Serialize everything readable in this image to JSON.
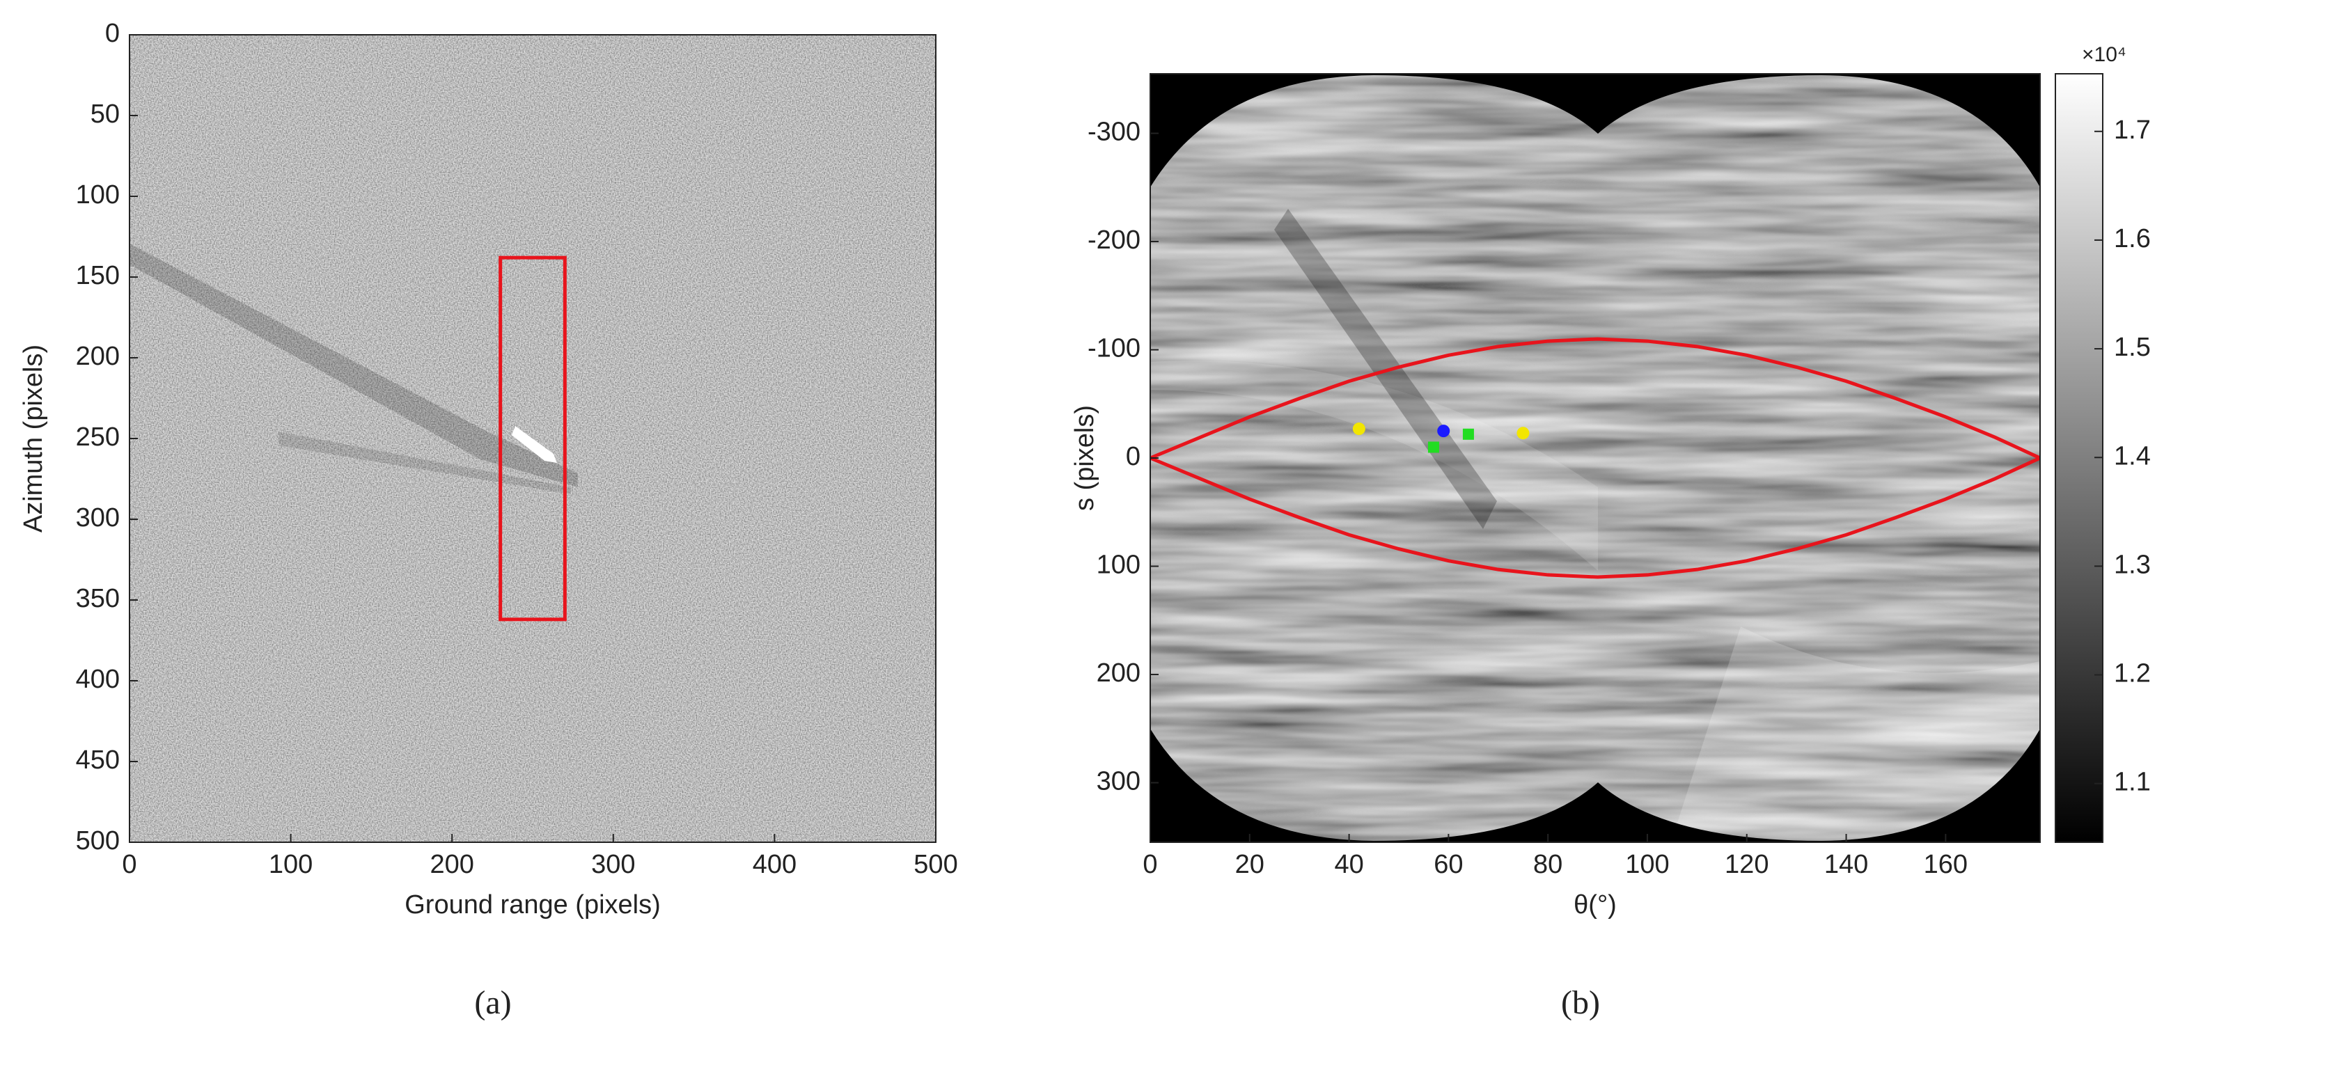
{
  "chart_data": [
    {
      "type": "image",
      "xlabel": "Ground range (pixels)",
      "ylabel": "Azimuth (pixels)",
      "caption": "(a)",
      "xlim": [
        0,
        500
      ],
      "ylim": [
        0,
        500
      ],
      "y_reversed": true,
      "xticks": [
        0,
        100,
        200,
        300,
        400,
        500
      ],
      "yticks": [
        0,
        50,
        100,
        150,
        200,
        250,
        300,
        350,
        400,
        450,
        500
      ],
      "rects": [
        {
          "x": [
            230,
            270
          ],
          "y": [
            138,
            362
          ],
          "color": "#e8141c"
        }
      ]
    },
    {
      "type": "image",
      "xlabel": "θ(°)",
      "ylabel": "s (pixels)",
      "caption": "(b)",
      "xlim": [
        0,
        179
      ],
      "ylim": [
        -355,
        355
      ],
      "y_reversed": true,
      "xticks": [
        0,
        20,
        40,
        60,
        80,
        100,
        120,
        140,
        160
      ],
      "yticks": [
        -300,
        -200,
        -100,
        0,
        100,
        200,
        300
      ],
      "series": [
        {
          "color": "#e8141c",
          "x": [
            0,
            10,
            20,
            30,
            40,
            50,
            60,
            70,
            80,
            90,
            100,
            110,
            120,
            130,
            140,
            150,
            160,
            170,
            179
          ],
          "values": [
            0,
            -19,
            -38,
            -55,
            -71,
            -84,
            -95,
            -103,
            -108,
            -110,
            -108,
            -103,
            -95,
            -84,
            -71,
            -55,
            -38,
            -19,
            0
          ]
        },
        {
          "color": "#e8141c",
          "x": [
            0,
            10,
            20,
            30,
            40,
            50,
            60,
            70,
            80,
            90,
            100,
            110,
            120,
            130,
            140,
            150,
            160,
            170,
            179
          ],
          "values": [
            0,
            19,
            38,
            55,
            71,
            84,
            95,
            103,
            108,
            110,
            108,
            103,
            95,
            84,
            71,
            55,
            38,
            19,
            0
          ]
        }
      ],
      "points": [
        {
          "x": 42,
          "y": -27,
          "color": "#f2e600",
          "marker": "circle"
        },
        {
          "x": 75,
          "y": -23,
          "color": "#f2e600",
          "marker": "circle"
        },
        {
          "x": 59,
          "y": -25,
          "color": "#1a1aff",
          "marker": "circle"
        },
        {
          "x": 57,
          "y": -10,
          "color": "#22dd22",
          "marker": "square"
        },
        {
          "x": 64,
          "y": -22,
          "color": "#22dd22",
          "marker": "square"
        }
      ],
      "colorbar": {
        "lim": [
          10460,
          17530
        ],
        "exponent_label": "×10⁴",
        "ticks": [
          {
            "value": 11000,
            "label": "1.1"
          },
          {
            "value": 12000,
            "label": "1.2"
          },
          {
            "value": 13000,
            "label": "1.3"
          },
          {
            "value": 14000,
            "label": "1.4"
          },
          {
            "value": 15000,
            "label": "1.5"
          },
          {
            "value": 16000,
            "label": "1.6"
          },
          {
            "value": 17000,
            "label": "1.7"
          }
        ]
      }
    }
  ]
}
